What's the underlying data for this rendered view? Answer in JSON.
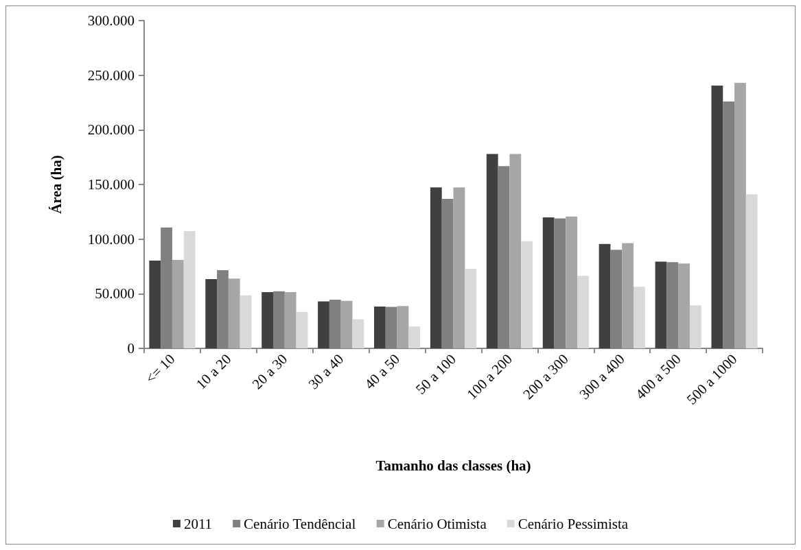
{
  "chart_data": {
    "type": "bar",
    "xlabel": "Tamanho das classes (ha)",
    "ylabel": "Área (ha)",
    "categories": [
      "<= 10",
      "10 a 20",
      "20 a 30",
      "30 a 40",
      "40 a 50",
      "50 a 100",
      "100 a 200",
      "200 a 300",
      "300 a 400",
      "400 a 500",
      "500 a 1000"
    ],
    "series": [
      {
        "name": "2011",
        "color": "#404040",
        "values": [
          80400,
          63400,
          51500,
          43000,
          38300,
          147400,
          177900,
          119800,
          95500,
          79400,
          240600
        ]
      },
      {
        "name": "Cenário Tendêncial",
        "color": "#808080",
        "values": [
          110600,
          71500,
          52300,
          44500,
          37900,
          136800,
          166800,
          118900,
          90200,
          78900,
          226000
        ]
      },
      {
        "name": "Cenário Otimista",
        "color": "#a6a6a6",
        "values": [
          80900,
          63800,
          51500,
          43400,
          38700,
          147400,
          177900,
          120600,
          96400,
          77700,
          243000
        ]
      },
      {
        "name": "Cenário Pessimista",
        "color": "#d9d9d9",
        "values": [
          107400,
          48500,
          33200,
          26600,
          20000,
          72800,
          98100,
          66400,
          56400,
          39400,
          141000
        ]
      }
    ],
    "ylim": [
      0,
      300000
    ],
    "yticks": [
      {
        "value": 0,
        "label": "0"
      },
      {
        "value": 50000,
        "label": "50.000"
      },
      {
        "value": 100000,
        "label": "100.000"
      },
      {
        "value": 150000,
        "label": "150.000"
      },
      {
        "value": 200000,
        "label": "200.000"
      },
      {
        "value": 250000,
        "label": "250.000"
      },
      {
        "value": 300000,
        "label": "300.000"
      }
    ],
    "grid": false,
    "legend": "bottom"
  }
}
